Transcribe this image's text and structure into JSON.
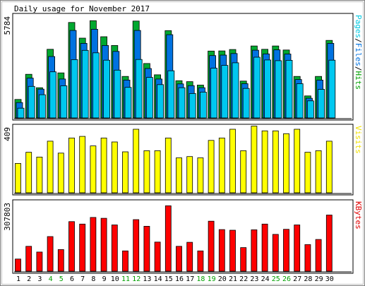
{
  "chart_data": [
    {
      "type": "bar",
      "title": "Daily usage for November 2017",
      "ymax_label": "5784",
      "ylabel_parts": [
        {
          "text": "Pages",
          "color": "#00c8e0"
        },
        {
          "text": "/",
          "color": "#000000"
        },
        {
          "text": "Files",
          "color": "#0072e0"
        },
        {
          "text": "/",
          "color": "#000000"
        },
        {
          "text": "Hits",
          "color": "#00a000"
        }
      ],
      "ylim": [
        0,
        5784
      ],
      "categories": [
        "1",
        "2",
        "3",
        "4",
        "5",
        "6",
        "7",
        "8",
        "9",
        "10",
        "11",
        "12",
        "13",
        "14",
        "15",
        "16",
        "17",
        "18",
        "19",
        "20",
        "21",
        "22",
        "23",
        "24",
        "25",
        "26",
        "27",
        "28",
        "29",
        "30"
      ],
      "weekend_days": [
        "4",
        "5",
        "11",
        "12",
        "18",
        "19",
        "25",
        "26"
      ],
      "series": [
        {
          "name": "Hits",
          "color": "#00a830",
          "values": [
            1060,
            2500,
            1730,
            3930,
            2580,
            5470,
            4570,
            5570,
            4650,
            4150,
            2380,
            5550,
            3120,
            2470,
            5000,
            2130,
            2080,
            1880,
            3830,
            3840,
            3920,
            2110,
            4120,
            3930,
            4120,
            3890,
            2380,
            1260,
            2380,
            4440
          ]
        },
        {
          "name": "Files",
          "color": "#0072e0",
          "values": [
            880,
            2280,
            1650,
            3520,
            2230,
            5010,
            4270,
            5080,
            4150,
            3810,
            2170,
            5010,
            2830,
            2230,
            4770,
            1950,
            1850,
            1730,
            3570,
            3600,
            3690,
            1960,
            3880,
            3670,
            3900,
            3660,
            2200,
            1130,
            2170,
            4270
          ]
        },
        {
          "name": "Pages",
          "color": "#00c8f0",
          "values": [
            560,
            1810,
            1330,
            2640,
            1840,
            3340,
            3870,
            3730,
            3310,
            2740,
            1750,
            3350,
            2320,
            1910,
            2700,
            1730,
            1400,
            1480,
            2850,
            3010,
            3160,
            1690,
            3480,
            3320,
            3280,
            3300,
            1960,
            980,
            1640,
            3310
          ]
        }
      ]
    },
    {
      "type": "bar",
      "ymax_label": "409",
      "ylabel_parts": [
        {
          "text": "Visits",
          "color": "#f0e000"
        }
      ],
      "ylim": [
        0,
        409
      ],
      "categories": [
        "1",
        "2",
        "3",
        "4",
        "5",
        "6",
        "7",
        "8",
        "9",
        "10",
        "11",
        "12",
        "13",
        "14",
        "15",
        "16",
        "17",
        "18",
        "19",
        "20",
        "21",
        "22",
        "23",
        "24",
        "25",
        "26",
        "27",
        "28",
        "29",
        "30"
      ],
      "series": [
        {
          "name": "Visits",
          "color": "#ffff00",
          "values": [
            185,
            255,
            225,
            325,
            250,
            345,
            355,
            295,
            345,
            320,
            258,
            400,
            265,
            265,
            345,
            220,
            228,
            220,
            330,
            345,
            400,
            265,
            420,
            390,
            390,
            372,
            400,
            255,
            265,
            325
          ]
        }
      ]
    },
    {
      "type": "bar",
      "ymax_label": "307803",
      "ylabel_parts": [
        {
          "text": "KBytes",
          "color": "#e00000"
        }
      ],
      "ylim": [
        0,
        307803
      ],
      "categories": [
        "1",
        "2",
        "3",
        "4",
        "5",
        "6",
        "7",
        "8",
        "9",
        "10",
        "11",
        "12",
        "13",
        "14",
        "15",
        "16",
        "17",
        "18",
        "19",
        "20",
        "21",
        "22",
        "23",
        "24",
        "25",
        "26",
        "27",
        "28",
        "29",
        "30"
      ],
      "series": [
        {
          "name": "KBytes",
          "color": "#ff0000",
          "values": [
            55000,
            113000,
            87000,
            157000,
            98000,
            225000,
            214000,
            244000,
            240000,
            210000,
            92000,
            234000,
            204000,
            132000,
            297000,
            113000,
            131000,
            92000,
            227000,
            189000,
            186000,
            107000,
            188000,
            214000,
            167000,
            190000,
            210000,
            121000,
            144000,
            255000
          ]
        }
      ]
    }
  ]
}
